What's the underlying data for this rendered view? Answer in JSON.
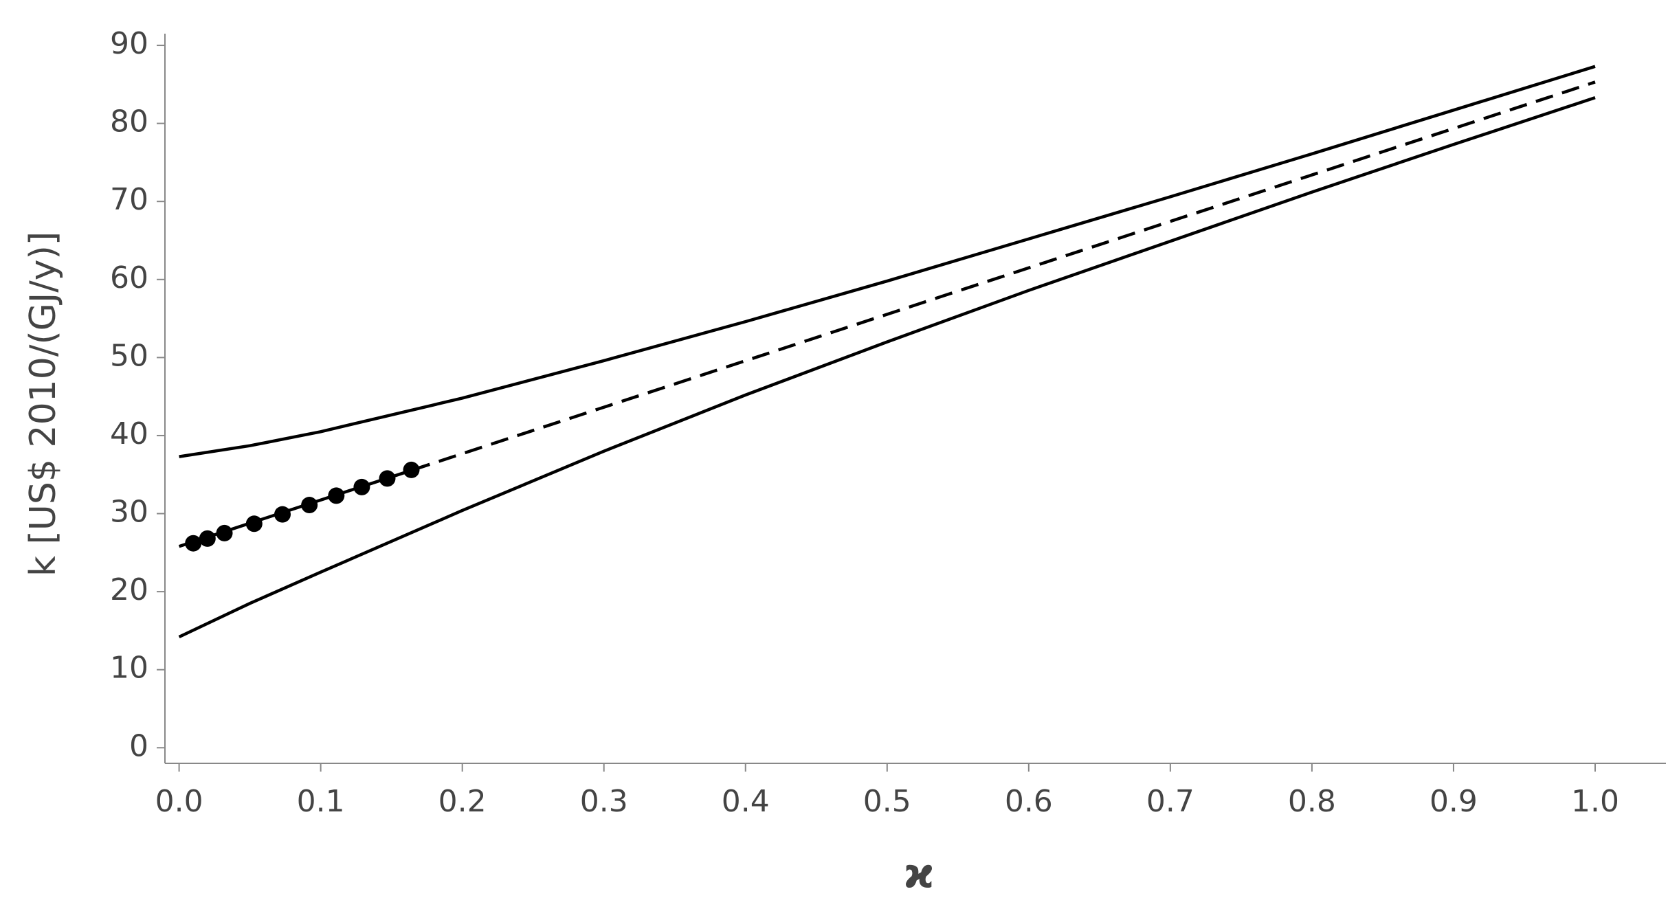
{
  "chart_data": {
    "type": "line",
    "xlabel": "ϰ",
    "ylabel": "k [US$ 2010/(GJ/y)]",
    "xlim": [
      -0.01,
      1.05
    ],
    "ylim": [
      -2,
      91.5
    ],
    "xticks": [
      {
        "value": 0,
        "label": "0.0"
      },
      0.1,
      0.2,
      0.3,
      0.4,
      0.5,
      0.6,
      0.7,
      0.8,
      0.9,
      {
        "value": 1,
        "label": "1.0"
      }
    ],
    "yticks": [
      0,
      10,
      20,
      30,
      40,
      50,
      60,
      70,
      80,
      90
    ],
    "series": [
      {
        "color": "#000000",
        "dash": "solid",
        "x": [
          0,
          0.05,
          0.1,
          0.2,
          0.3,
          0.4,
          0.5,
          0.6,
          0.7,
          0.8,
          0.9,
          1.0
        ],
        "values": [
          37.3,
          38.7,
          40.5,
          44.8,
          49.6,
          54.6,
          59.8,
          65.2,
          70.6,
          76.1,
          81.7,
          87.3
        ]
      },
      {
        "color": "#000000",
        "dash": "solid",
        "x": [
          0,
          0.05,
          0.1,
          0.2,
          0.3,
          0.4,
          0.5,
          0.6,
          0.7,
          0.8,
          0.9,
          1.0
        ],
        "values": [
          14.2,
          18.5,
          22.5,
          30.4,
          38.0,
          45.2,
          52.0,
          58.6,
          64.9,
          71.2,
          77.3,
          83.3
        ]
      },
      {
        "color": "#000000",
        "dash": "solid",
        "x": [
          0,
          0.165
        ],
        "values": [
          25.8,
          35.6
        ]
      },
      {
        "color": "#000000",
        "dash": "dashed",
        "x": [
          0.165,
          1.0
        ],
        "values": [
          35.6,
          85.3
        ]
      },
      {
        "type": "scatter",
        "color": "#000000",
        "x": [
          0.01,
          0.02,
          0.032,
          0.053,
          0.073,
          0.092,
          0.111,
          0.129,
          0.147,
          0.164
        ],
        "values": [
          26.2,
          26.8,
          27.5,
          28.7,
          29.9,
          31.1,
          32.3,
          33.4,
          34.5,
          35.6
        ]
      }
    ]
  }
}
